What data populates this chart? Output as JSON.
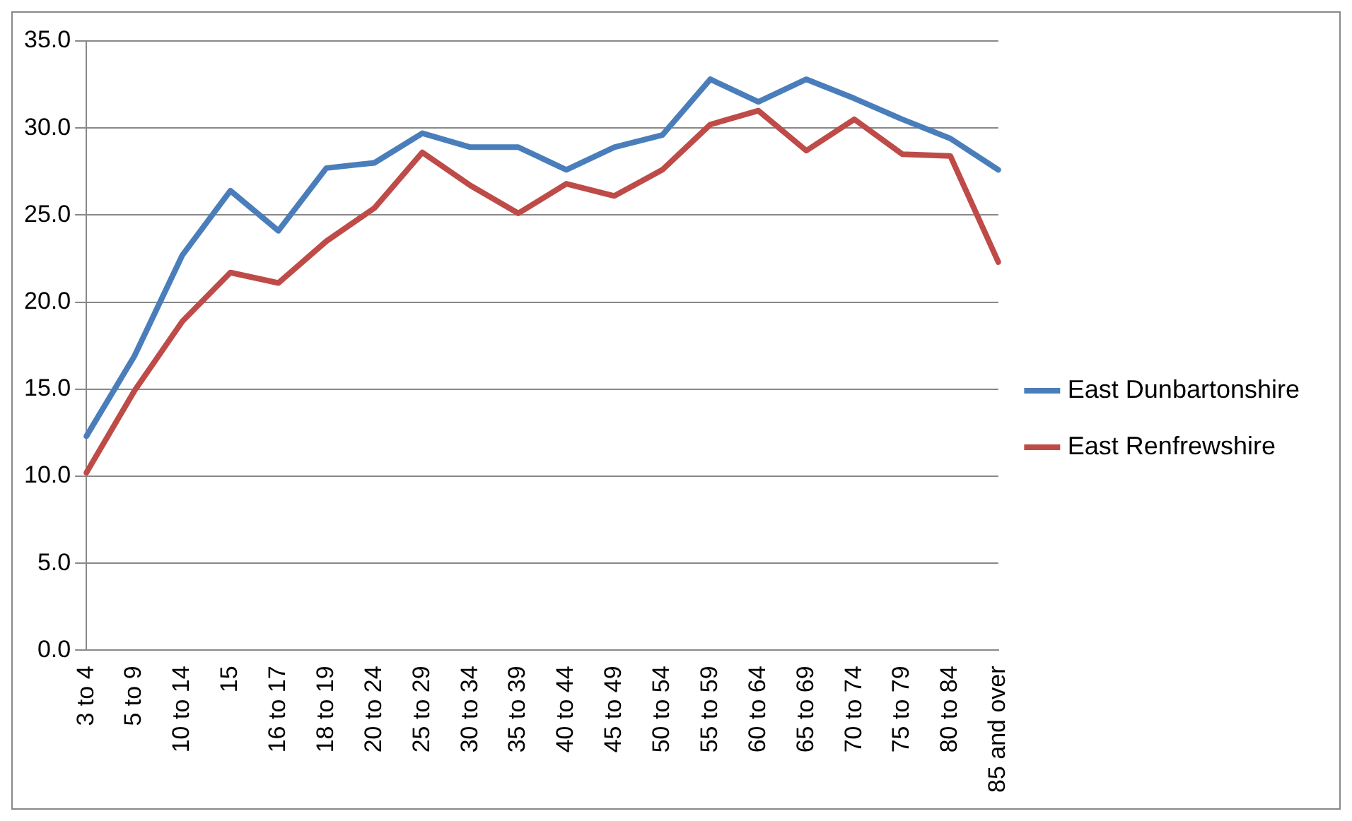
{
  "chart_data": {
    "type": "line",
    "categories": [
      "3 to 4",
      "5 to 9",
      "10 to 14",
      "15",
      "16 to 17",
      "18 to 19",
      "20 to 24",
      "25 to 29",
      "30 to 34",
      "35 to 39",
      "40 to 44",
      "45 to 49",
      "50 to 54",
      "55 to 59",
      "60 to 64",
      "65 to 69",
      "70 to 74",
      "75 to 79",
      "80 to 84",
      "85 and over"
    ],
    "series": [
      {
        "name": "East Dunbartonshire",
        "color": "#4a7ebb",
        "values": [
          12.3,
          16.9,
          22.7,
          26.4,
          24.1,
          27.7,
          28.0,
          29.7,
          28.9,
          28.9,
          27.6,
          28.9,
          29.6,
          32.8,
          31.5,
          32.8,
          31.7,
          30.5,
          29.4,
          27.6
        ]
      },
      {
        "name": "East Renfrewshire",
        "color": "#be4b48",
        "values": [
          10.2,
          14.9,
          18.9,
          21.7,
          21.1,
          23.5,
          25.4,
          28.6,
          26.7,
          25.1,
          26.8,
          26.1,
          27.6,
          30.2,
          31.0,
          28.7,
          30.5,
          28.5,
          28.4,
          22.3
        ]
      }
    ],
    "ylim": [
      0,
      35
    ],
    "yticks": [
      {
        "value": 0,
        "label": "0.0"
      },
      {
        "value": 5,
        "label": "5.0"
      },
      {
        "value": 10,
        "label": "10.0"
      },
      {
        "value": 15,
        "label": "15.0"
      },
      {
        "value": 20,
        "label": "20.0"
      },
      {
        "value": 25,
        "label": "25.0"
      },
      {
        "value": 30,
        "label": "30.0"
      },
      {
        "value": 35,
        "label": "35.0"
      }
    ],
    "grid": "y",
    "legend": "right",
    "marker": "none",
    "line_style": "solid"
  }
}
